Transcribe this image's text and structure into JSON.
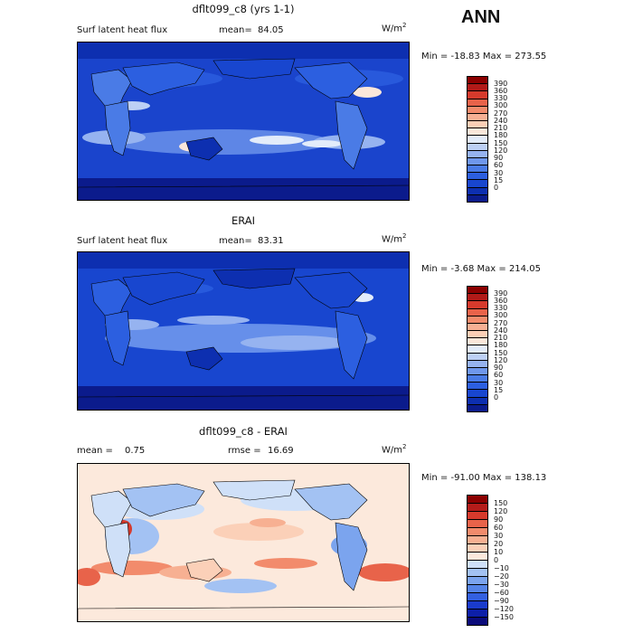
{
  "season": "ANN",
  "panels": [
    {
      "title": "dflt099_c8 (yrs 1-1)",
      "left_label": "Surf latent heat flux",
      "mean_label": "mean=",
      "mean_value": "84.05",
      "units_base": "W/m",
      "units_exp": "2",
      "minmax": "Min = -18.83 Max = 273.55",
      "colorbar": {
        "colors": [
          "#0b1b8c",
          "#0d2fb0",
          "#1846cf",
          "#2c5fe0",
          "#4a7be6",
          "#6f97ec",
          "#96b3f0",
          "#bdd0f5",
          "#e3ecfa",
          "#fbe7da",
          "#fbcfb6",
          "#f7b094",
          "#f28b6c",
          "#e8634a",
          "#d63a2c",
          "#b11a18",
          "#8b0000"
        ],
        "ticks": [
          "390",
          "360",
          "330",
          "300",
          "270",
          "240",
          "210",
          "180",
          "150",
          "120",
          "90",
          "60",
          "30",
          "15",
          "0"
        ]
      }
    },
    {
      "title": "ERAI",
      "left_label": "Surf latent heat flux",
      "mean_label": "mean=",
      "mean_value": "83.31",
      "units_base": "W/m",
      "units_exp": "2",
      "minmax": "Min = -3.68 Max = 214.05",
      "colorbar": {
        "colors": [
          "#0b1b8c",
          "#0d2fb0",
          "#1846cf",
          "#2c5fe0",
          "#4a7be6",
          "#6f97ec",
          "#96b3f0",
          "#bdd0f5",
          "#e3ecfa",
          "#fbe7da",
          "#fbcfb6",
          "#f7b094",
          "#f28b6c",
          "#e8634a",
          "#d63a2c",
          "#b11a18",
          "#8b0000"
        ],
        "ticks": [
          "390",
          "360",
          "330",
          "300",
          "270",
          "240",
          "210",
          "180",
          "150",
          "120",
          "90",
          "60",
          "30",
          "15",
          "0"
        ]
      }
    },
    {
      "title": "dflt099_c8 - ERAI",
      "left_label": "mean =",
      "mean_label": "",
      "mean_value": "0.75",
      "rmse_label": "rmse =",
      "rmse_value": "16.69",
      "units_base": "W/m",
      "units_exp": "2",
      "minmax": "Min = -91.00 Max = 138.13",
      "colorbar": {
        "colors": [
          "#0b0b7a",
          "#0d1fa8",
          "#1a3bcc",
          "#3360e0",
          "#5584e8",
          "#7ba4ee",
          "#a3c2f3",
          "#cfe0f8",
          "#fce9dc",
          "#fbd0b8",
          "#f7b092",
          "#f28b6c",
          "#e8634a",
          "#d63a2c",
          "#b41c1a",
          "#8b0000"
        ],
        "ticks": [
          "150",
          "120",
          "90",
          "60",
          "30",
          "20",
          "10",
          "0",
          "−10",
          "−20",
          "−30",
          "−60",
          "−90",
          "−120",
          "−150"
        ]
      }
    }
  ]
}
